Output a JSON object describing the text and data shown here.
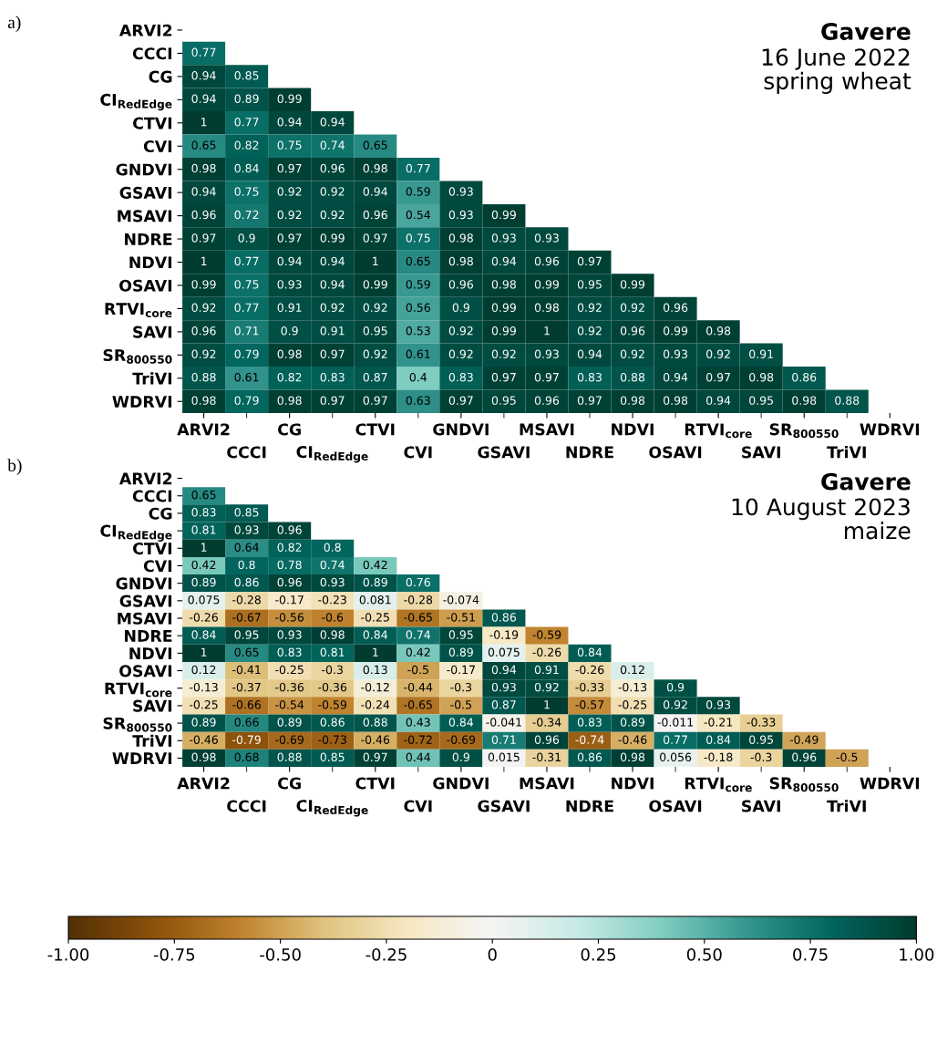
{
  "chart_data": [
    {
      "type": "heatmap",
      "title": "Gavere",
      "subtitle": "16 June 2022\nspring wheat",
      "annotations": [
        "a)"
      ],
      "categories": [
        "ARVI2",
        "CCCI",
        "CG",
        "CI$_{RedEdge}$",
        "CTVI",
        "CVI",
        "GNDVI",
        "GSAVI",
        "MSAVI",
        "NDRE",
        "NDVI",
        "OSAVI",
        "RTVI$_{core}$",
        "SAVI",
        "SR$_{800550}$",
        "TriVI",
        "WDRVI"
      ],
      "y_categories": [
        "ARVI2",
        "CCCI",
        "CG",
        "CI$_{RedEdge}$",
        "CTVI",
        "CVI",
        "GNDVI",
        "GSAVI",
        "MSAVI",
        "NDRE",
        "NDVI",
        "OSAVI",
        "RTVI$_{core}$",
        "SAVI",
        "SR$_{800550}$",
        "TriVI",
        "WDRVI"
      ],
      "data_labels": true,
      "cells": [
        [
          null,
          null,
          null,
          null,
          null,
          null,
          null,
          null,
          null,
          null,
          null,
          null,
          null,
          null,
          null,
          null,
          null
        ],
        [
          0.77,
          null,
          null,
          null,
          null,
          null,
          null,
          null,
          null,
          null,
          null,
          null,
          null,
          null,
          null,
          null,
          null
        ],
        [
          0.94,
          0.85,
          null,
          null,
          null,
          null,
          null,
          null,
          null,
          null,
          null,
          null,
          null,
          null,
          null,
          null,
          null
        ],
        [
          0.94,
          0.89,
          0.99,
          null,
          null,
          null,
          null,
          null,
          null,
          null,
          null,
          null,
          null,
          null,
          null,
          null,
          null
        ],
        [
          1,
          0.77,
          0.94,
          0.94,
          null,
          null,
          null,
          null,
          null,
          null,
          null,
          null,
          null,
          null,
          null,
          null,
          null
        ],
        [
          0.65,
          0.82,
          0.75,
          0.74,
          0.65,
          null,
          null,
          null,
          null,
          null,
          null,
          null,
          null,
          null,
          null,
          null,
          null
        ],
        [
          0.98,
          0.84,
          0.97,
          0.96,
          0.98,
          0.77,
          null,
          null,
          null,
          null,
          null,
          null,
          null,
          null,
          null,
          null,
          null
        ],
        [
          0.94,
          0.75,
          0.92,
          0.92,
          0.94,
          0.59,
          0.93,
          null,
          null,
          null,
          null,
          null,
          null,
          null,
          null,
          null,
          null
        ],
        [
          0.96,
          0.72,
          0.92,
          0.92,
          0.96,
          0.54,
          0.93,
          0.99,
          null,
          null,
          null,
          null,
          null,
          null,
          null,
          null,
          null
        ],
        [
          0.97,
          0.9,
          0.97,
          0.99,
          0.97,
          0.75,
          0.98,
          0.93,
          0.93,
          null,
          null,
          null,
          null,
          null,
          null,
          null,
          null
        ],
        [
          1,
          0.77,
          0.94,
          0.94,
          1,
          0.65,
          0.98,
          0.94,
          0.96,
          0.97,
          null,
          null,
          null,
          null,
          null,
          null,
          null
        ],
        [
          0.99,
          0.75,
          0.93,
          0.94,
          0.99,
          0.59,
          0.96,
          0.98,
          0.99,
          0.95,
          0.99,
          null,
          null,
          null,
          null,
          null,
          null
        ],
        [
          0.92,
          0.77,
          0.91,
          0.92,
          0.92,
          0.56,
          0.9,
          0.99,
          0.98,
          0.92,
          0.92,
          0.96,
          null,
          null,
          null,
          null,
          null
        ],
        [
          0.96,
          0.71,
          0.9,
          0.91,
          0.95,
          0.53,
          0.92,
          0.99,
          1,
          0.92,
          0.96,
          0.99,
          0.98,
          null,
          null,
          null,
          null
        ],
        [
          0.92,
          0.79,
          0.98,
          0.97,
          0.92,
          0.61,
          0.92,
          0.92,
          0.93,
          0.94,
          0.92,
          0.93,
          0.92,
          0.91,
          null,
          null,
          null
        ],
        [
          0.88,
          0.61,
          0.82,
          0.83,
          0.87,
          0.4,
          0.83,
          0.97,
          0.97,
          0.83,
          0.88,
          0.94,
          0.97,
          0.98,
          0.86,
          null,
          null
        ],
        [
          0.98,
          0.79,
          0.98,
          0.97,
          0.97,
          0.63,
          0.97,
          0.95,
          0.96,
          0.97,
          0.98,
          0.98,
          0.94,
          0.95,
          0.98,
          0.88,
          null
        ]
      ]
    },
    {
      "type": "heatmap",
      "title": "Gavere",
      "subtitle": "10 August 2023\nmaize",
      "annotations": [
        "b)"
      ],
      "categories": [
        "ARVI2",
        "CCCI",
        "CG",
        "CI$_{RedEdge}$",
        "CTVI",
        "CVI",
        "GNDVI",
        "GSAVI",
        "MSAVI",
        "NDRE",
        "NDVI",
        "OSAVI",
        "RTVI$_{core}$",
        "SAVI",
        "SR$_{800550}$",
        "TriVI",
        "WDRVI"
      ],
      "y_categories": [
        "ARVI2",
        "CCCI",
        "CG",
        "CI$_{RedEdge}$",
        "CTVI",
        "CVI",
        "GNDVI",
        "GSAVI",
        "MSAVI",
        "NDRE",
        "NDVI",
        "OSAVI",
        "RTVI$_{core}$",
        "SAVI",
        "SR$_{800550}$",
        "TriVI",
        "WDRVI"
      ],
      "clim": [
        -1,
        1
      ],
      "data_labels": true,
      "cticks": [
        {
          "value": -1,
          "label": "-1.00"
        },
        {
          "value": -0.75,
          "label": "-0.75"
        },
        {
          "value": -0.5,
          "label": "-0.50"
        },
        {
          "value": -0.25,
          "label": "-0.25"
        },
        {
          "value": 0,
          "label": "0"
        },
        {
          "value": 0.25,
          "label": "0.25"
        },
        {
          "value": 0.5,
          "label": "0.50"
        },
        {
          "value": 0.75,
          "label": "0.75"
        },
        {
          "value": 1,
          "label": "1.00"
        }
      ],
      "cells": [
        [
          null,
          null,
          null,
          null,
          null,
          null,
          null,
          null,
          null,
          null,
          null,
          null,
          null,
          null,
          null,
          null,
          null
        ],
        [
          0.65,
          null,
          null,
          null,
          null,
          null,
          null,
          null,
          null,
          null,
          null,
          null,
          null,
          null,
          null,
          null,
          null
        ],
        [
          0.83,
          0.85,
          null,
          null,
          null,
          null,
          null,
          null,
          null,
          null,
          null,
          null,
          null,
          null,
          null,
          null,
          null
        ],
        [
          0.81,
          0.93,
          0.96,
          null,
          null,
          null,
          null,
          null,
          null,
          null,
          null,
          null,
          null,
          null,
          null,
          null,
          null
        ],
        [
          1,
          0.64,
          0.82,
          0.8,
          null,
          null,
          null,
          null,
          null,
          null,
          null,
          null,
          null,
          null,
          null,
          null,
          null
        ],
        [
          0.42,
          0.8,
          0.78,
          0.74,
          0.42,
          null,
          null,
          null,
          null,
          null,
          null,
          null,
          null,
          null,
          null,
          null,
          null
        ],
        [
          0.89,
          0.86,
          0.96,
          0.93,
          0.89,
          0.76,
          null,
          null,
          null,
          null,
          null,
          null,
          null,
          null,
          null,
          null,
          null
        ],
        [
          0.075,
          -0.28,
          -0.17,
          -0.23,
          0.081,
          -0.28,
          -0.074,
          null,
          null,
          null,
          null,
          null,
          null,
          null,
          null,
          null,
          null
        ],
        [
          -0.26,
          -0.67,
          -0.56,
          -0.6,
          -0.25,
          -0.65,
          -0.51,
          0.86,
          null,
          null,
          null,
          null,
          null,
          null,
          null,
          null,
          null
        ],
        [
          0.84,
          0.95,
          0.93,
          0.98,
          0.84,
          0.74,
          0.95,
          -0.19,
          -0.59,
          null,
          null,
          null,
          null,
          null,
          null,
          null,
          null
        ],
        [
          1,
          0.65,
          0.83,
          0.81,
          1,
          0.42,
          0.89,
          0.075,
          -0.26,
          0.84,
          null,
          null,
          null,
          null,
          null,
          null,
          null
        ],
        [
          0.12,
          -0.41,
          -0.25,
          -0.3,
          0.13,
          -0.5,
          -0.17,
          0.94,
          0.91,
          -0.26,
          0.12,
          null,
          null,
          null,
          null,
          null,
          null
        ],
        [
          -0.13,
          -0.37,
          -0.36,
          -0.36,
          -0.12,
          -0.44,
          -0.3,
          0.93,
          0.92,
          -0.33,
          -0.13,
          0.9,
          null,
          null,
          null,
          null,
          null
        ],
        [
          -0.25,
          -0.66,
          -0.54,
          -0.59,
          -0.24,
          -0.65,
          -0.5,
          0.87,
          1,
          -0.57,
          -0.25,
          0.92,
          0.93,
          null,
          null,
          null,
          null
        ],
        [
          0.89,
          0.66,
          0.89,
          0.86,
          0.88,
          0.43,
          0.84,
          -0.041,
          -0.34,
          0.83,
          0.89,
          -0.011,
          -0.21,
          -0.33,
          null,
          null,
          null
        ],
        [
          -0.46,
          -0.79,
          -0.69,
          -0.73,
          -0.46,
          -0.72,
          -0.69,
          0.71,
          0.96,
          -0.74,
          -0.46,
          0.77,
          0.84,
          0.95,
          -0.49,
          null,
          null
        ],
        [
          0.98,
          0.68,
          0.88,
          0.85,
          0.97,
          0.44,
          0.9,
          0.015,
          -0.31,
          0.86,
          0.98,
          0.056,
          -0.18,
          -0.3,
          0.96,
          -0.5,
          null
        ]
      ]
    }
  ]
}
